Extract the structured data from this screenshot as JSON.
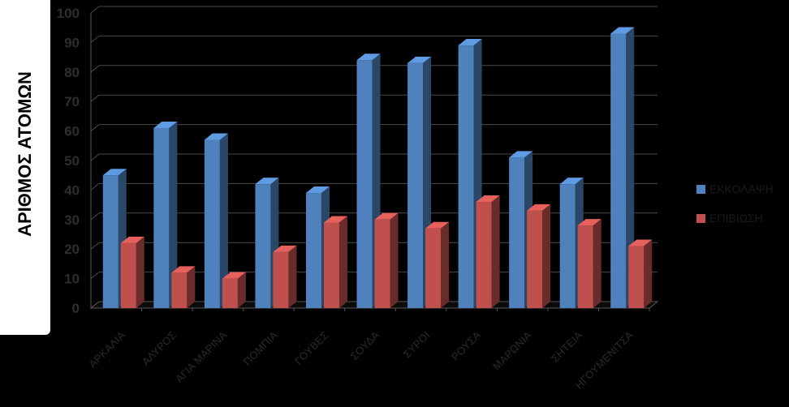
{
  "chart_data": {
    "type": "bar",
    "title": "",
    "xlabel": "",
    "ylabel": "ΑΡΙΘΜΟΣ ΑΤΟΜΩΝ",
    "ylim": [
      0,
      100
    ],
    "yticks": [
      0,
      10,
      20,
      30,
      40,
      50,
      60,
      70,
      80,
      90,
      100
    ],
    "grid": true,
    "legend_position": "right",
    "categories": [
      "ΑΡΚΑΛΙΑ",
      "ΑΛΥΡΟΣ",
      "ΑΓΙΑ ΜΑΡΙΝΑ",
      "ΠΟΜΠΙΑ",
      "ΓΟΥΒΕΣ",
      "ΣΟΥΔΑ",
      "ΣΥΡΟΙ",
      "ΡΟΥΣΑ",
      "ΜΑΡΩΝΙΑ",
      "ΣΗΤΕΙΑ",
      "ΗΓΟΥΜΕΝΙΤΣΑ"
    ],
    "series": [
      {
        "name": "ΕΚΚΟΛΑΨΗ",
        "color": "#4f81bd",
        "values": [
          45,
          61,
          57,
          42,
          39,
          84,
          83,
          89,
          51,
          42,
          93
        ]
      },
      {
        "name": "ΕΠΙΒΙΩΣΗ",
        "color": "#c0504d",
        "values": [
          22,
          12,
          10,
          19,
          29,
          30,
          27,
          36,
          33,
          28,
          21
        ]
      }
    ]
  }
}
